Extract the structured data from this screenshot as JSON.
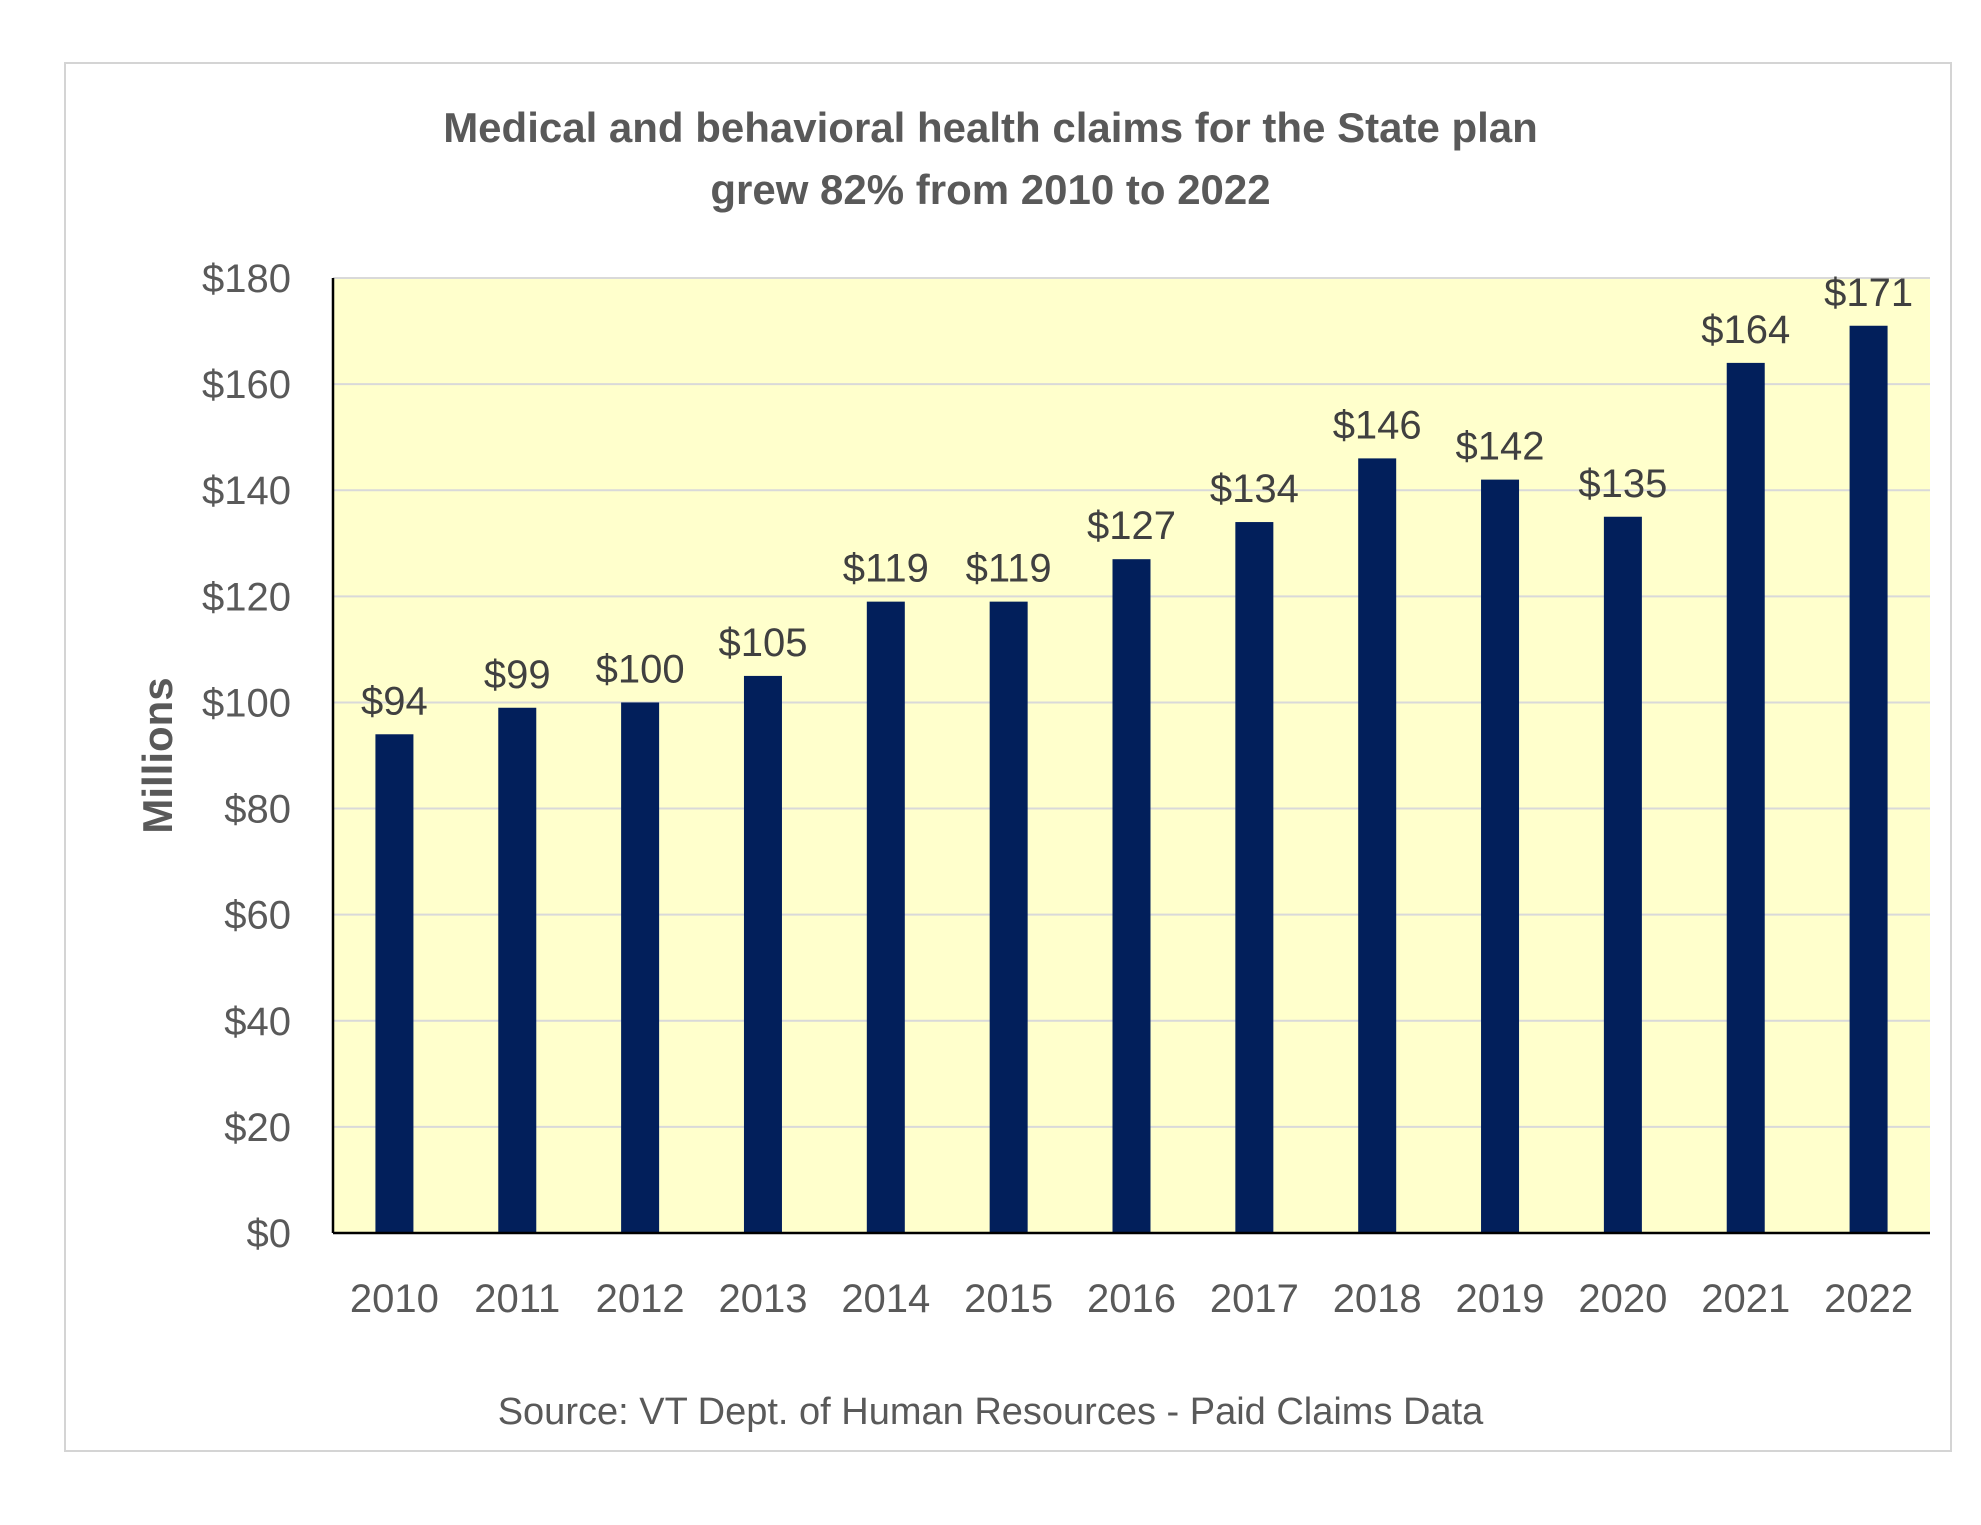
{
  "chart_data": {
    "type": "bar",
    "title_lines": [
      "Medical and behavioral health claims for the State plan",
      "grew 82% from 2010 to 2022"
    ],
    "ylabel": "Millions",
    "xlabel": "",
    "source": "Source: VT Dept. of Human Resources - Paid Claims Data",
    "categories": [
      "2010",
      "2011",
      "2012",
      "2013",
      "2014",
      "2015",
      "2016",
      "2017",
      "2018",
      "2019",
      "2020",
      "2021",
      "2022"
    ],
    "values": [
      94,
      99,
      100,
      105,
      119,
      119,
      127,
      134,
      146,
      142,
      135,
      164,
      171
    ],
    "data_labels": [
      "$94",
      "$99",
      "$100",
      "$105",
      "$119",
      "$119",
      "$127",
      "$134",
      "$146",
      "$142",
      "$135",
      "$164",
      "$171"
    ],
    "ylim": [
      0,
      180
    ],
    "yticks": [
      0,
      20,
      40,
      60,
      80,
      100,
      120,
      140,
      160,
      180
    ],
    "ytick_labels": [
      "$0",
      "$20",
      "$40",
      "$60",
      "$80",
      "$100",
      "$120",
      "$140",
      "$160",
      "$180"
    ],
    "grid": true,
    "legend": "none",
    "colors": {
      "bar": "#021f5b",
      "plot_background": "#ffffcc",
      "gridline": "#d9d9d9",
      "text": "#595959"
    }
  }
}
